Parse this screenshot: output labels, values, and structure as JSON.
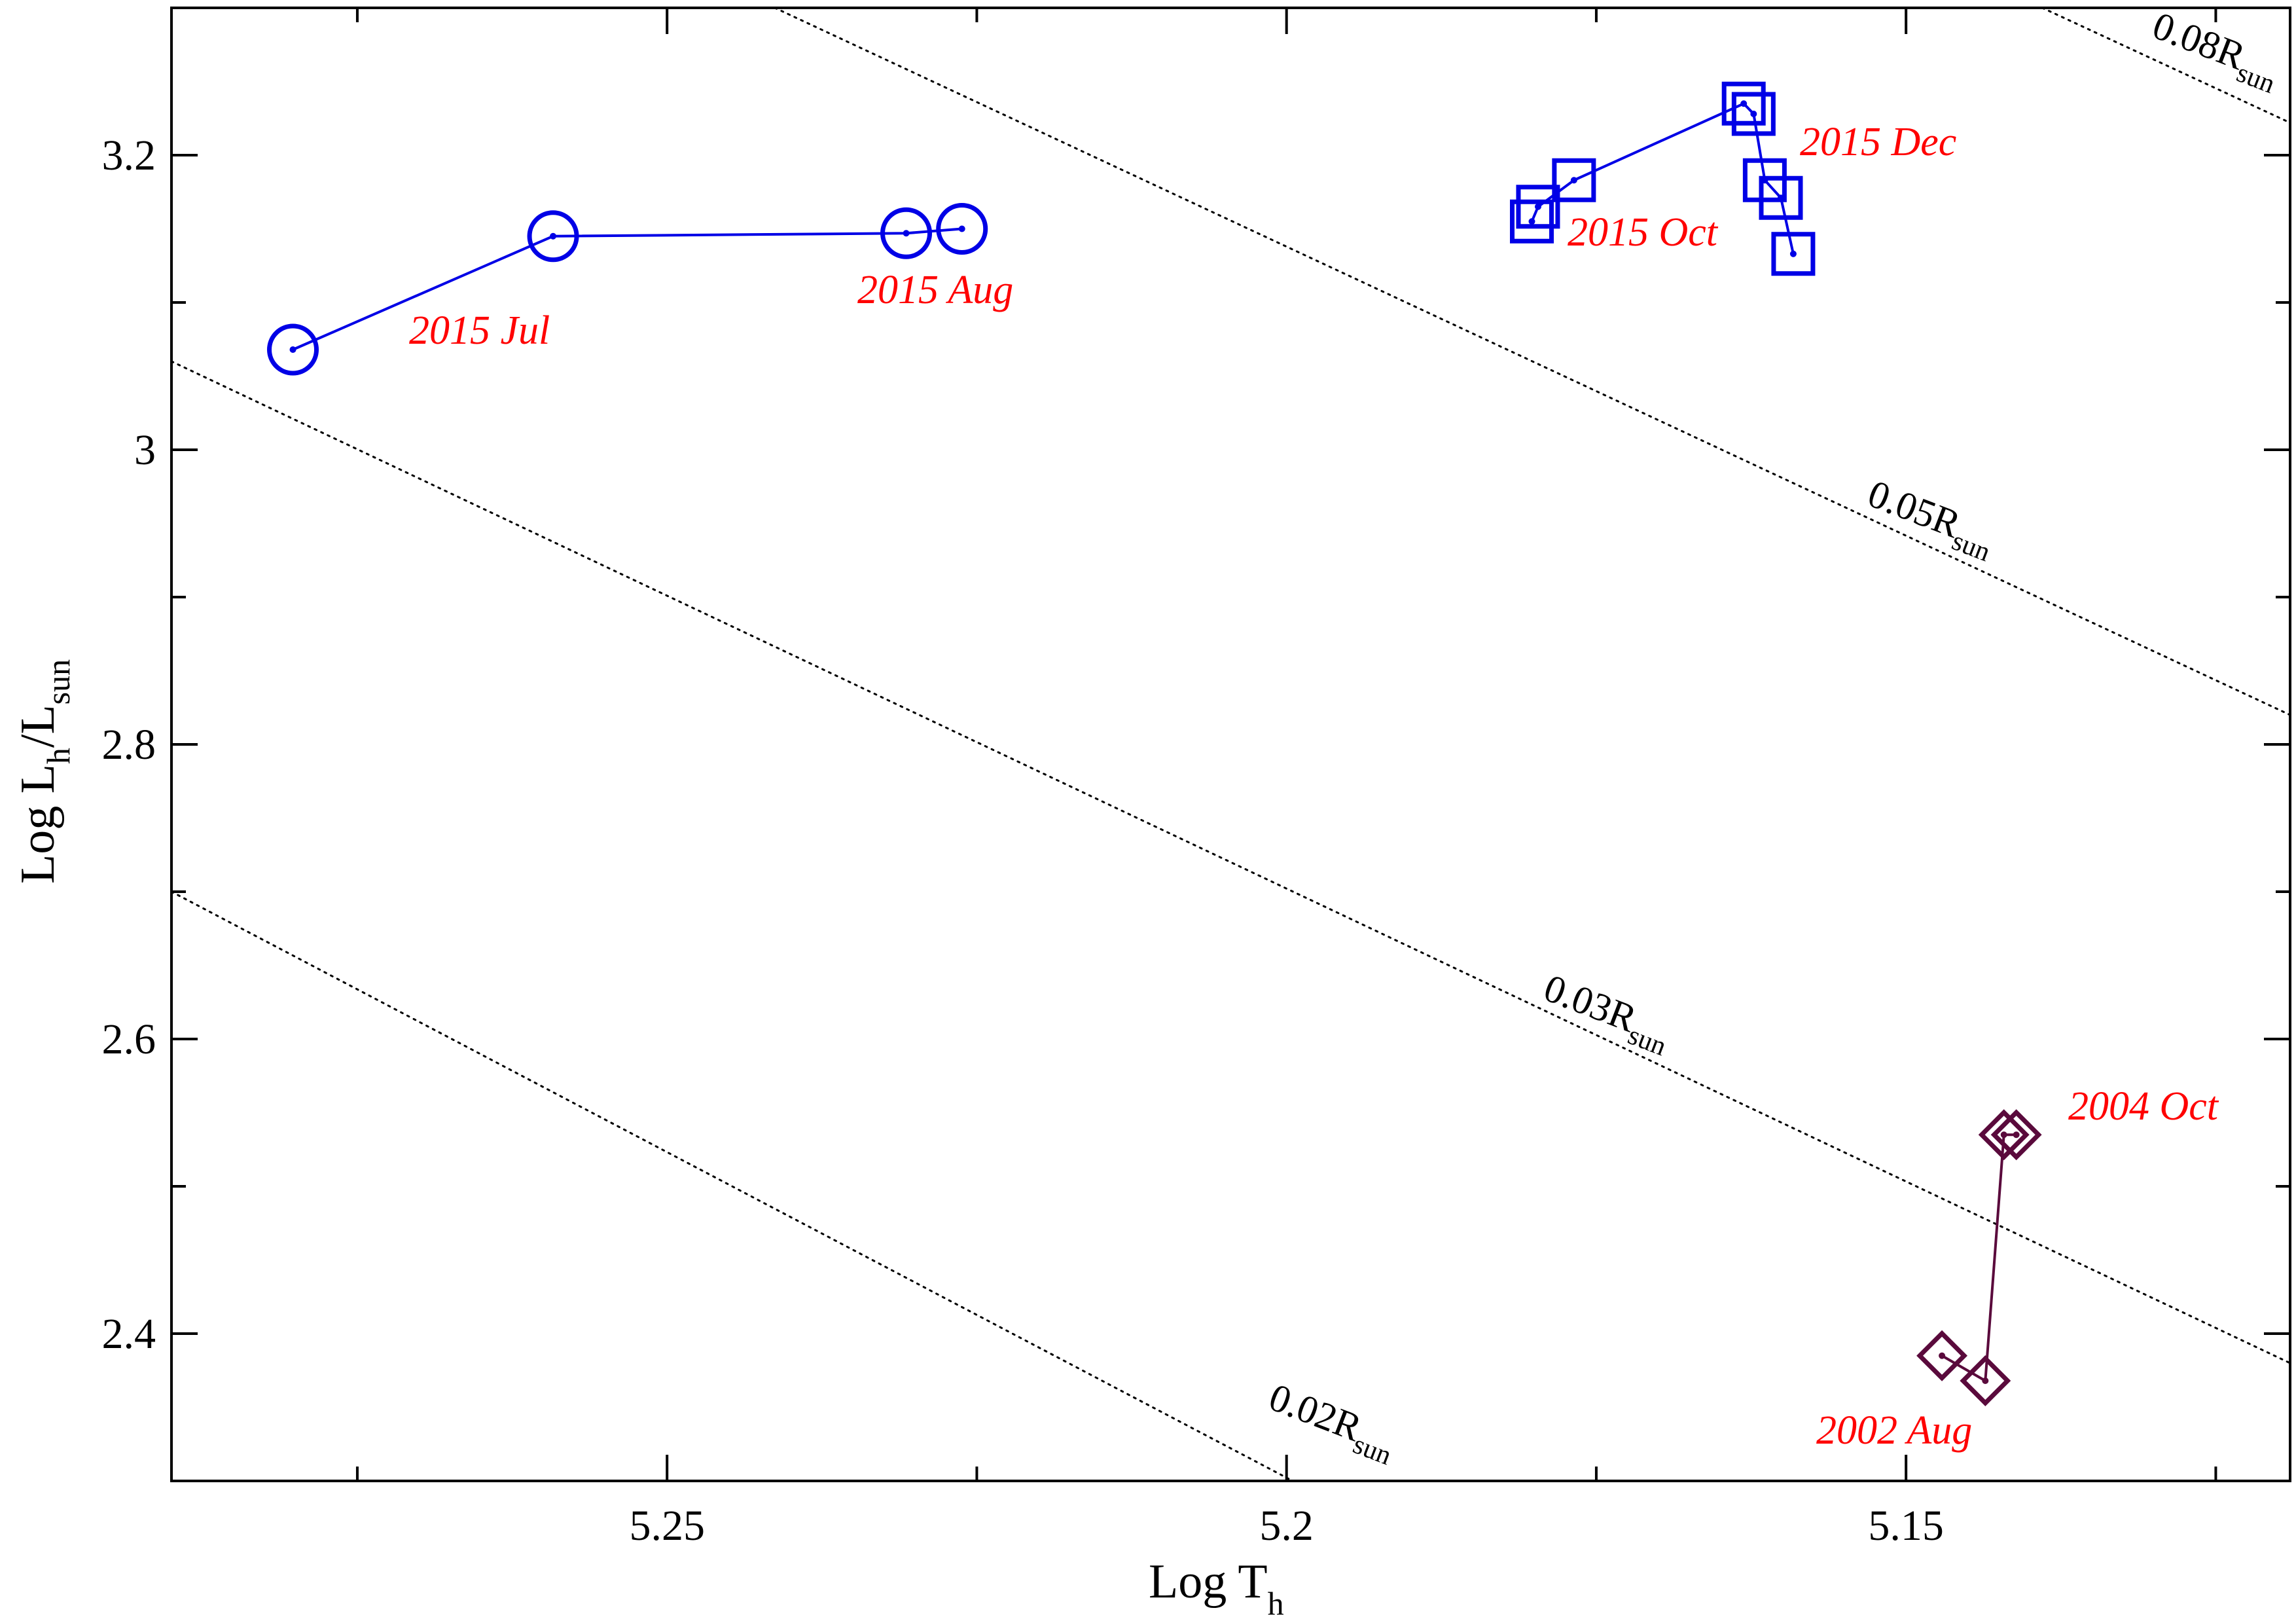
{
  "chart_data": {
    "type": "scatter",
    "xlabel": "Log T",
    "xlabel_sub": "h",
    "ylabel_parts": [
      "Log L",
      "h",
      "/L",
      "sun"
    ],
    "xlim": [
      5.29,
      5.119
    ],
    "ylim": [
      2.3,
      3.3
    ],
    "x_reversed": true,
    "grid": false,
    "legend": "none",
    "xticks": [
      5.25,
      5.2,
      5.15
    ],
    "xtick_labels": [
      "5.25",
      "5.2",
      "5.15"
    ],
    "yticks": [
      2.4,
      2.6,
      2.8,
      3.0,
      3.2
    ],
    "ytick_labels": [
      "2.4",
      "2.6",
      "2.8",
      "3",
      "3.2"
    ],
    "series": [
      {
        "marker": "circle",
        "color": "#0000e6",
        "points": [
          [
            5.2802,
            3.068
          ],
          [
            5.2592,
            3.145
          ],
          [
            5.2307,
            3.147
          ],
          [
            5.2262,
            3.15
          ]
        ]
      },
      {
        "marker": "square",
        "color": "#0000e6",
        "points": [
          [
            5.1802,
            3.155
          ],
          [
            5.1797,
            3.165
          ],
          [
            5.1768,
            3.183
          ],
          [
            5.1631,
            3.235
          ],
          [
            5.1623,
            3.228
          ],
          [
            5.1614,
            3.183
          ],
          [
            5.1601,
            3.171
          ],
          [
            5.1591,
            3.133
          ]
        ]
      },
      {
        "marker": "diamond",
        "color": "#5a0a3c",
        "points": [
          [
            5.1471,
            2.385
          ],
          [
            5.1436,
            2.368
          ],
          [
            5.1421,
            2.535
          ],
          [
            5.1411,
            2.535
          ]
        ]
      }
    ],
    "radius_lines": [
      {
        "label": "0.02R",
        "sub": "sun",
        "p1": [
          5.29,
          2.7
        ],
        "p2": [
          5.1995,
          2.3
        ]
      },
      {
        "label": "0.03R",
        "sub": "sun",
        "p1": [
          5.29,
          3.06
        ],
        "p2": [
          5.119,
          2.38
        ]
      },
      {
        "label": "0.05R",
        "sub": "sun",
        "p1": [
          5.2413,
          3.3
        ],
        "p2": [
          5.119,
          2.82
        ]
      },
      {
        "label": "0.08R",
        "sub": "sun",
        "p1": [
          5.139,
          3.3
        ],
        "p2": [
          5.119,
          3.222
        ]
      }
    ],
    "annotations": [
      "2015 Jul",
      "2015 Aug",
      "2015 Oct",
      "2015 Dec",
      "2004 Oct",
      "2002 Aug"
    ]
  }
}
